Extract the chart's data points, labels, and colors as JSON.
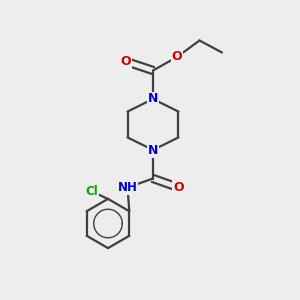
{
  "background_color": "#ededee",
  "atom_colors": {
    "C": "#404040",
    "N": "#0000cc",
    "O": "#cc0000",
    "Cl": "#00aa00",
    "H": "#505050"
  },
  "bond_color": "#404040",
  "bond_width": 1.6,
  "figsize": [
    3.0,
    3.0
  ],
  "dpi": 100,
  "xlim": [
    0,
    10
  ],
  "ylim": [
    0,
    10
  ]
}
